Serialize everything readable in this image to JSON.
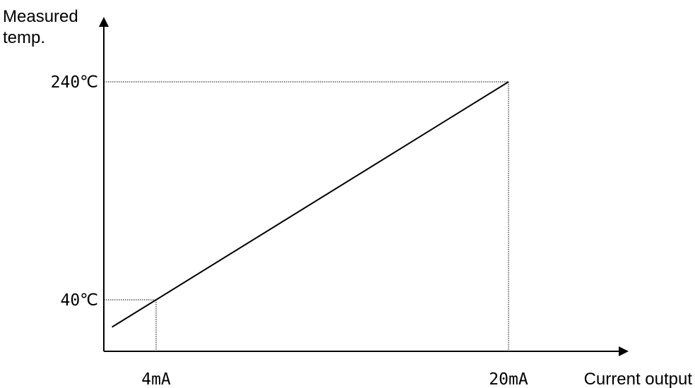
{
  "chart_data": {
    "type": "line",
    "ylabel_lines": [
      "Measured",
      "temp."
    ],
    "xlabel": "Current output",
    "x_ticks": [
      {
        "value": 4,
        "label": "4mA"
      },
      {
        "value": 20,
        "label": "20mA"
      }
    ],
    "y_ticks": [
      {
        "value": 40,
        "label": "40℃"
      },
      {
        "value": 240,
        "label": "240℃"
      }
    ],
    "x_unit": "mA",
    "y_unit": "℃",
    "series": [
      {
        "x": [
          2,
          20
        ],
        "y": [
          15,
          240
        ]
      }
    ],
    "reference_lines": [
      {
        "x": 4,
        "y": 40
      },
      {
        "x": 20,
        "y": 240
      }
    ],
    "grid": false,
    "legend": "none"
  }
}
